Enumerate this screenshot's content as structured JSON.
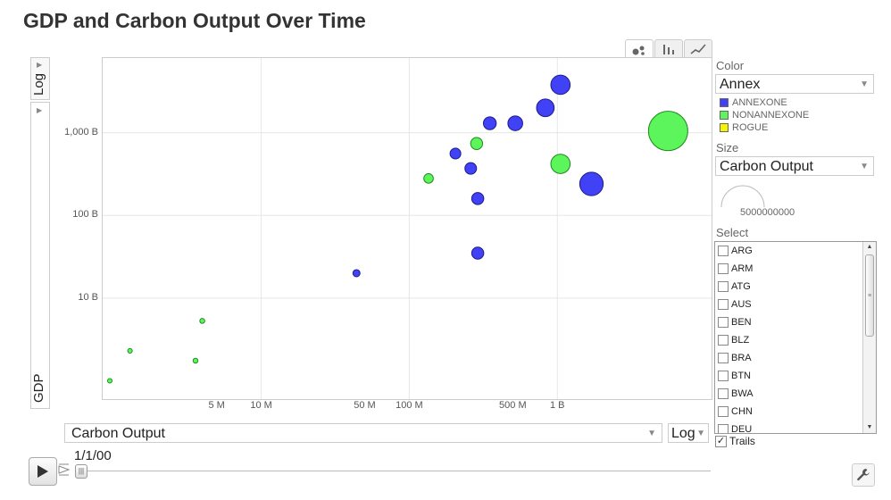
{
  "title": "GDP and Carbon Output Over Time",
  "tabs": [
    {
      "name": "bubble",
      "icon": "bubble-chart-icon"
    },
    {
      "name": "bar",
      "icon": "bar-chart-icon"
    },
    {
      "name": "line",
      "icon": "line-chart-icon"
    }
  ],
  "y_axis": {
    "scale_label": "Log",
    "variable": "GDP"
  },
  "x_axis": {
    "variable": "Carbon Output",
    "scale_label": "Log"
  },
  "color_panel": {
    "label": "Color",
    "selected": "Annex",
    "legend": [
      {
        "label": "ANNEXONE",
        "color": "#4141f5"
      },
      {
        "label": "NONANNEXONE",
        "color": "#5cf55c"
      },
      {
        "label": "ROGUE",
        "color": "#f5f500"
      }
    ]
  },
  "size_panel": {
    "label": "Size",
    "selected": "Carbon Output",
    "scale_value": "5000000000"
  },
  "select_panel": {
    "label": "Select",
    "items": [
      "ARG",
      "ARM",
      "ATG",
      "AUS",
      "BEN",
      "BLZ",
      "BRA",
      "BTN",
      "BWA",
      "CHN",
      "DEU"
    ]
  },
  "trails": {
    "label": "Trails",
    "checked": true
  },
  "playback": {
    "date": "1/1/00"
  },
  "chart_data": {
    "type": "scatter",
    "title": "",
    "xlabel": "Carbon Output",
    "ylabel": "GDP",
    "x_scale": "log",
    "y_scale": "log",
    "x_ticks": [
      {
        "label": "5 M",
        "value": 5000000
      },
      {
        "label": "10 M",
        "value": 10000000
      },
      {
        "label": "50 M",
        "value": 50000000
      },
      {
        "label": "100 M",
        "value": 100000000
      },
      {
        "label": "500 M",
        "value": 500000000
      },
      {
        "label": "1 B",
        "value": 1000000000
      }
    ],
    "y_ticks": [
      {
        "label": "10 B",
        "value": 10000000000
      },
      {
        "label": "100 B",
        "value": 100000000000
      },
      {
        "label": "1,000 B",
        "value": 1000000000000
      }
    ],
    "xlim": [
      850000,
      11000000000
    ],
    "ylim": [
      600000000,
      8000000000000
    ],
    "grid": true,
    "series": [
      {
        "name": "ANNEXONE",
        "color": "#4141f5",
        "points": [
          {
            "x": 44000000,
            "y": 20000000000
          },
          {
            "x": 290000000,
            "y": 35000000000
          },
          {
            "x": 290000000,
            "y": 160000000000
          },
          {
            "x": 260000000,
            "y": 370000000000
          },
          {
            "x": 205000000,
            "y": 560000000000
          },
          {
            "x": 350000000,
            "y": 1300000000000
          },
          {
            "x": 520000000,
            "y": 1300000000000
          },
          {
            "x": 830000000,
            "y": 2000000000000
          },
          {
            "x": 1050000000,
            "y": 3800000000000
          },
          {
            "x": 1700000000,
            "y": 240000000000
          }
        ]
      },
      {
        "name": "NONANNEXONE",
        "color": "#5cf55c",
        "points": [
          {
            "x": 950000,
            "y": 1000000000
          },
          {
            "x": 1300000,
            "y": 2300000000
          },
          {
            "x": 3600000,
            "y": 1750000000
          },
          {
            "x": 4000000,
            "y": 5300000000
          },
          {
            "x": 135000000,
            "y": 280000000000
          },
          {
            "x": 285000000,
            "y": 740000000000
          },
          {
            "x": 1050000000,
            "y": 420000000000
          },
          {
            "x": 5600000000,
            "y": 1050000000000
          }
        ]
      },
      {
        "name": "ROGUE",
        "color": "#f5f500",
        "points": []
      }
    ]
  }
}
